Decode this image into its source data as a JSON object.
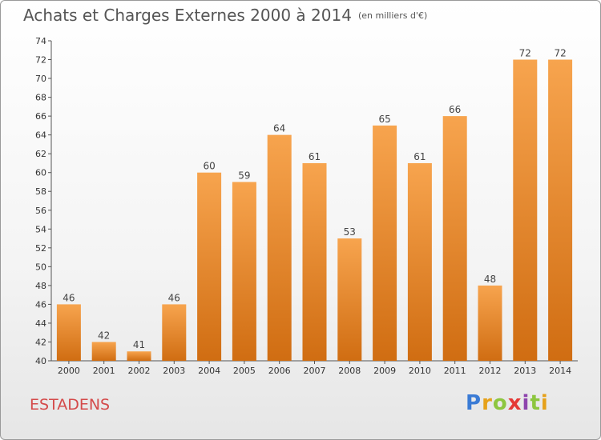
{
  "header": {
    "title": "Achats et Charges Externes 2000 à 2014",
    "subtitle": "(en milliers d'€)"
  },
  "footer": {
    "commune": "ESTADENS",
    "logo_text": "Proxiti"
  },
  "colors": {
    "bar_light": "#f7a44e",
    "bar_dark": "#d06d12",
    "commune_text": "#d44a4a"
  },
  "chart_data": {
    "type": "bar",
    "categories": [
      "2000",
      "2001",
      "2002",
      "2003",
      "2004",
      "2005",
      "2006",
      "2007",
      "2008",
      "2009",
      "2010",
      "2011",
      "2012",
      "2013",
      "2014"
    ],
    "values": [
      46,
      42,
      41,
      46,
      60,
      59,
      64,
      61,
      53,
      65,
      61,
      66,
      48,
      72,
      72
    ],
    "ylim": [
      40,
      74
    ],
    "yticks": [
      40,
      42,
      44,
      46,
      48,
      50,
      52,
      54,
      56,
      58,
      60,
      62,
      64,
      66,
      68,
      70,
      72,
      74
    ],
    "grid": false,
    "legend": "none",
    "data_labels": true
  }
}
